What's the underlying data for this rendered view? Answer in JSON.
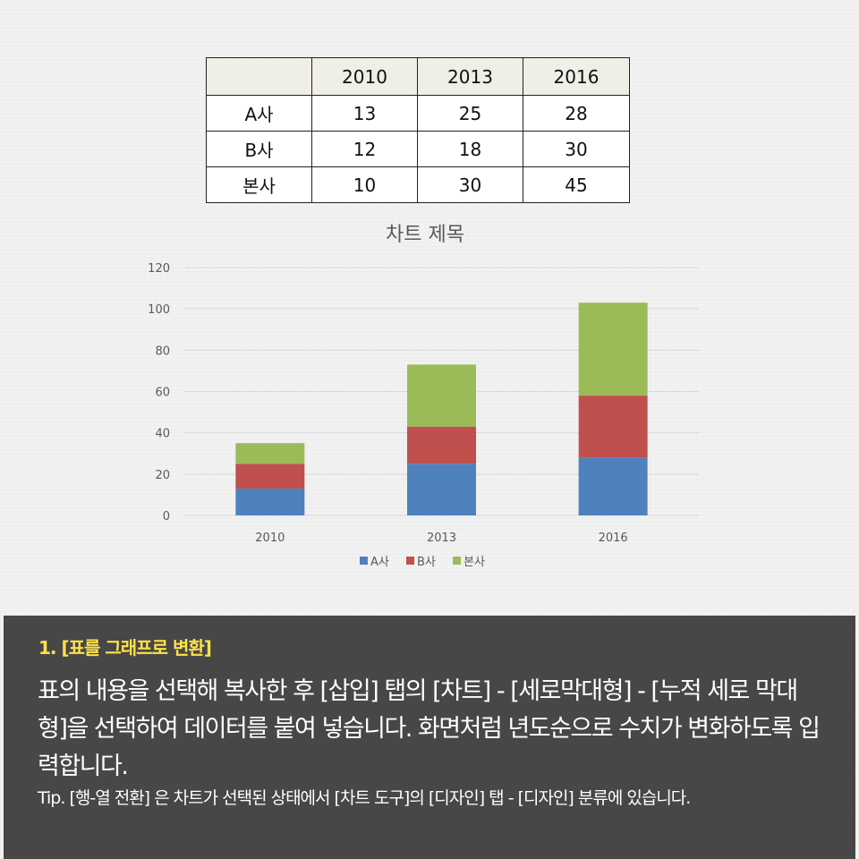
{
  "table": {
    "headers": [
      "",
      "2010",
      "2013",
      "2016"
    ],
    "rows": [
      {
        "label": "A사",
        "values": [
          "13",
          "25",
          "28"
        ]
      },
      {
        "label": "B사",
        "values": [
          "12",
          "18",
          "30"
        ]
      },
      {
        "label": "본사",
        "values": [
          "10",
          "30",
          "45"
        ]
      }
    ]
  },
  "chart_data": {
    "type": "bar",
    "stacked": true,
    "title": "차트 제목",
    "categories": [
      "2010",
      "2013",
      "2016"
    ],
    "series": [
      {
        "name": "A사",
        "values": [
          13,
          25,
          28
        ],
        "color": "#4f81bd"
      },
      {
        "name": "B사",
        "values": [
          12,
          18,
          30
        ],
        "color": "#c0504d"
      },
      {
        "name": "본사",
        "values": [
          10,
          30,
          45
        ],
        "color": "#9bbb59"
      }
    ],
    "ylim": [
      0,
      120
    ],
    "yticks": [
      0,
      20,
      40,
      60,
      80,
      100,
      120
    ],
    "grid": true,
    "legend": "bottom"
  },
  "info": {
    "heading": "1. [표를 그래프로 변환]",
    "body": "표의 내용을 선택해 복사한 후 [삽입] 탭의 [차트] - [세로막대형] - [누적 세로 막대형]을 선택하여 데이터를 붙여 넣습니다. 화면처럼 년도순으로 수치가 변화하도록 입력합니다.",
    "tip": "Tip. [행-열 전환] 은 차트가 선택된 상태에서 [차트 도구]의 [디자인] 탭 - [디자인] 분류에 있습니다."
  },
  "colors": {
    "panel": "#474747",
    "heading": "#ffe14a",
    "gridline": "#d9d9d9"
  }
}
